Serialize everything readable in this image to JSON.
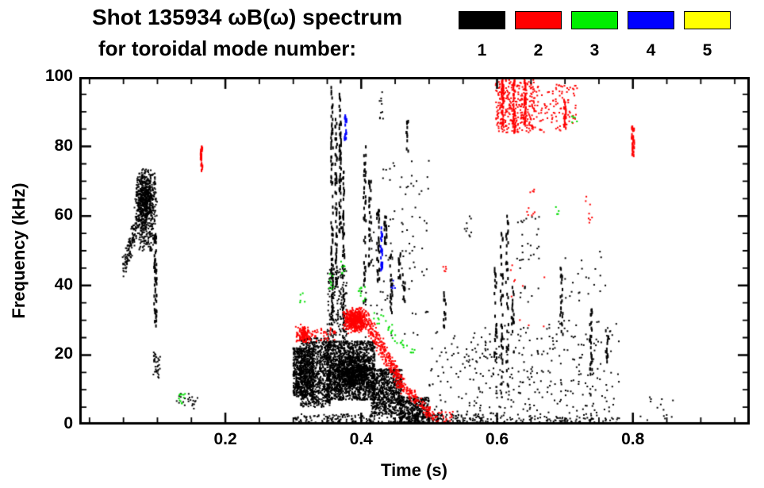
{
  "figure": {
    "title_line1": "Shot 135934 ωB(ω) spectrum",
    "title_line2": "for toroidal mode number:",
    "background": "#ffffff"
  },
  "legend": {
    "position": "top",
    "entries": [
      {
        "label": "1",
        "color": "#000000"
      },
      {
        "label": "2",
        "color": "#ff0000"
      },
      {
        "label": "3",
        "color": "#00ee00"
      },
      {
        "label": "4",
        "color": "#0000ff"
      },
      {
        "label": "5",
        "color": "#ffff00"
      }
    ]
  },
  "chart_data": {
    "type": "scatter",
    "title": "Shot 135934 ωB(ω) spectrum for toroidal mode number: 1 2 3 4 5",
    "xlabel": "Time (s)",
    "ylabel": "Frequency (kHz)",
    "xlim": [
      -0.015,
      0.972
    ],
    "ylim": [
      0,
      100
    ],
    "grid": false,
    "x_ticks": [
      {
        "value": 0.2,
        "label": "0.2"
      },
      {
        "value": 0.4,
        "label": "0.4"
      },
      {
        "value": 0.6,
        "label": "0.6"
      },
      {
        "value": 0.8,
        "label": "0.8"
      }
    ],
    "y_ticks": [
      {
        "value": 0,
        "label": "0"
      },
      {
        "value": 20,
        "label": "20"
      },
      {
        "value": 40,
        "label": "40"
      },
      {
        "value": 60,
        "label": "60"
      },
      {
        "value": 80,
        "label": "80"
      },
      {
        "value": 100,
        "label": "100"
      }
    ],
    "x_minor_step": 0.05,
    "y_minor_step": 5,
    "series": [
      {
        "name": "n=1",
        "color": "#000000",
        "clusters": [
          {
            "kind": "chirp",
            "from": [
              0.05,
              44
            ],
            "to": [
              0.072,
              60
            ],
            "jt": 0.003,
            "jf": 3,
            "n": 120,
            "s": 2
          },
          {
            "kind": "blob",
            "t": [
              0.066,
              0.1
            ],
            "f": [
              56,
              74
            ],
            "n": 650,
            "s": 2
          },
          {
            "kind": "band",
            "t": [
              0.07,
              0.095
            ],
            "f": [
              50,
              58
            ],
            "n": 120,
            "s": 2
          },
          {
            "kind": "vline",
            "t": 0.097,
            "f": [
              28,
              55
            ],
            "jt": 0.002,
            "n": 55,
            "s": 2
          },
          {
            "kind": "band",
            "t": [
              0.094,
              0.104
            ],
            "f": [
              13,
              21
            ],
            "n": 35,
            "s": 2
          },
          {
            "kind": "band",
            "t": [
              0.128,
              0.16
            ],
            "f": [
              4,
              9
            ],
            "n": 22,
            "s": 2
          },
          {
            "kind": "band",
            "t": [
              0.3,
              0.33
            ],
            "f": [
              8,
              22
            ],
            "n": 600,
            "s": 2
          },
          {
            "kind": "band",
            "t": [
              0.31,
              0.355
            ],
            "f": [
              5,
              25
            ],
            "n": 800,
            "s": 2
          },
          {
            "kind": "band",
            "t": [
              0.35,
              0.42
            ],
            "f": [
              7,
              24
            ],
            "n": 1500,
            "s": 2
          },
          {
            "kind": "blob",
            "t": [
              0.355,
              0.415
            ],
            "f": [
              10,
              20
            ],
            "n": 600,
            "s": 2
          },
          {
            "kind": "band",
            "t": [
              0.415,
              0.46
            ],
            "f": [
              3,
              16
            ],
            "n": 700,
            "s": 2
          },
          {
            "kind": "band",
            "t": [
              0.455,
              0.5
            ],
            "f": [
              0,
              8
            ],
            "n": 420,
            "s": 2
          },
          {
            "kind": "band",
            "t": [
              0.3,
              0.52
            ],
            "f": [
              0,
              3
            ],
            "n": 260,
            "s": 2
          },
          {
            "kind": "vline",
            "t": 0.357,
            "f": [
              25,
              97
            ],
            "jt": 0.0015,
            "n": 85,
            "s": 2
          },
          {
            "kind": "vline",
            "t": 0.363,
            "f": [
              40,
              90
            ],
            "jt": 0.0015,
            "n": 55,
            "s": 2
          },
          {
            "kind": "vline",
            "t": 0.369,
            "f": [
              55,
              100
            ],
            "jt": 0.0015,
            "n": 65,
            "s": 2
          },
          {
            "kind": "vline",
            "t": 0.374,
            "f": [
              25,
              75
            ],
            "jt": 0.0015,
            "n": 55,
            "s": 2
          },
          {
            "kind": "band",
            "t": [
              0.35,
              0.38
            ],
            "f": [
              24,
              45
            ],
            "n": 160,
            "s": 2
          },
          {
            "kind": "vline",
            "t": 0.405,
            "f": [
              35,
              80
            ],
            "jt": 0.002,
            "n": 45,
            "s": 2
          },
          {
            "kind": "vline",
            "t": 0.413,
            "f": [
              45,
              70
            ],
            "jt": 0.002,
            "n": 28,
            "s": 2
          },
          {
            "kind": "vline",
            "t": 0.425,
            "f": [
              40,
              62
            ],
            "jt": 0.002,
            "n": 32,
            "s": 2
          },
          {
            "kind": "vline",
            "t": 0.436,
            "f": [
              52,
              60
            ],
            "jt": 0.002,
            "n": 18,
            "s": 2
          },
          {
            "kind": "vline",
            "t": 0.444,
            "f": [
              30,
              50
            ],
            "jt": 0.002,
            "n": 22,
            "s": 2
          },
          {
            "kind": "vline",
            "t": 0.456,
            "f": [
              42,
              50
            ],
            "jt": 0.002,
            "n": 14,
            "s": 2
          },
          {
            "kind": "vline",
            "t": 0.463,
            "f": [
              35,
              45
            ],
            "jt": 0.002,
            "n": 13,
            "s": 2
          },
          {
            "kind": "band",
            "t": [
              0.4,
              0.5
            ],
            "f": [
              25,
              60
            ],
            "n": 70,
            "s": 2
          },
          {
            "kind": "band",
            "t": [
              0.43,
              0.5
            ],
            "f": [
              60,
              76
            ],
            "n": 25,
            "s": 2
          },
          {
            "kind": "vline",
            "t": 0.468,
            "f": [
              78,
              88
            ],
            "jt": 0.0015,
            "n": 12,
            "s": 2
          },
          {
            "kind": "band",
            "t": [
              0.427,
              0.433
            ],
            "f": [
              88,
              96
            ],
            "n": 10,
            "s": 2
          },
          {
            "kind": "band",
            "t": [
              0.5,
              0.58
            ],
            "f": [
              0,
              3
            ],
            "n": 90,
            "s": 2
          },
          {
            "kind": "band",
            "t": [
              0.5,
              0.58
            ],
            "f": [
              3,
              28
            ],
            "n": 85,
            "s": 2
          },
          {
            "kind": "vline",
            "t": 0.523,
            "f": [
              28,
              38
            ],
            "jt": 0.002,
            "n": 14,
            "s": 2
          },
          {
            "kind": "band",
            "t": [
              0.552,
              0.562
            ],
            "f": [
              54,
              60
            ],
            "n": 9,
            "s": 2
          },
          {
            "kind": "vline",
            "t": 0.598,
            "f": [
              18,
              45
            ],
            "jt": 0.002,
            "n": 26,
            "s": 2
          },
          {
            "kind": "vline",
            "t": 0.607,
            "f": [
              5,
              55
            ],
            "jt": 0.002,
            "n": 40,
            "s": 2
          },
          {
            "kind": "vline",
            "t": 0.615,
            "f": [
              10,
              60
            ],
            "jt": 0.002,
            "n": 36,
            "s": 2
          },
          {
            "kind": "vline",
            "t": 0.623,
            "f": [
              20,
              40
            ],
            "jt": 0.002,
            "n": 18,
            "s": 2
          },
          {
            "kind": "band",
            "t": [
              0.58,
              0.66
            ],
            "f": [
              2,
              30
            ],
            "n": 130,
            "s": 2
          },
          {
            "kind": "band",
            "t": [
              0.628,
              0.662
            ],
            "f": [
              32,
              60
            ],
            "n": 34,
            "s": 2
          },
          {
            "kind": "band",
            "t": [
              0.66,
              0.78
            ],
            "f": [
              2,
              30
            ],
            "n": 150,
            "s": 2
          },
          {
            "kind": "vline",
            "t": 0.695,
            "f": [
              25,
              45
            ],
            "jt": 0.002,
            "n": 22,
            "s": 2
          },
          {
            "kind": "vline",
            "t": 0.738,
            "f": [
              8,
              35
            ],
            "jt": 0.002,
            "n": 30,
            "s": 2
          },
          {
            "kind": "band",
            "t": [
              0.7,
              0.76
            ],
            "f": [
              35,
              50
            ],
            "n": 22,
            "s": 2
          },
          {
            "kind": "vline",
            "t": 0.762,
            "f": [
              18,
              28
            ],
            "jt": 0.002,
            "n": 13,
            "s": 2
          },
          {
            "kind": "band",
            "t": [
              0.56,
              0.78
            ],
            "f": [
              0,
              2
            ],
            "n": 120,
            "s": 2
          },
          {
            "kind": "band",
            "t": [
              0.81,
              0.86
            ],
            "f": [
              1,
              8
            ],
            "n": 14,
            "s": 2
          }
        ]
      },
      {
        "name": "n=2",
        "color": "#ff0000",
        "clusters": [
          {
            "kind": "vline",
            "t": 0.165,
            "f": [
              73,
              80
            ],
            "jt": 0.0015,
            "n": 24,
            "s": 2
          },
          {
            "kind": "blob",
            "t": [
              0.303,
              0.326
            ],
            "f": [
              23,
              29
            ],
            "n": 130,
            "s": 2
          },
          {
            "kind": "band",
            "t": [
              0.326,
              0.362
            ],
            "f": [
              24,
              28
            ],
            "n": 45,
            "s": 2
          },
          {
            "kind": "blob",
            "t": [
              0.372,
              0.412
            ],
            "f": [
              26,
              34
            ],
            "n": 480,
            "s": 2
          },
          {
            "kind": "chirp",
            "from": [
              0.41,
              29
            ],
            "to": [
              0.462,
              11
            ],
            "jt": 0.004,
            "jf": 2.5,
            "n": 260,
            "s": 2
          },
          {
            "kind": "chirp",
            "from": [
              0.462,
              11
            ],
            "to": [
              0.502,
              3
            ],
            "jt": 0.004,
            "jf": 1.5,
            "n": 110,
            "s": 2
          },
          {
            "kind": "band",
            "t": [
              0.5,
              0.535
            ],
            "f": [
              0,
              4
            ],
            "n": 40,
            "s": 2
          },
          {
            "kind": "band",
            "t": [
              0.598,
              0.655
            ],
            "f": [
              84,
              100
            ],
            "n": 330,
            "s": 2
          },
          {
            "kind": "vline",
            "t": 0.608,
            "f": [
              86,
              100
            ],
            "jt": 0.0015,
            "n": 35,
            "s": 2
          },
          {
            "kind": "vline",
            "t": 0.625,
            "f": [
              84,
              100
            ],
            "jt": 0.0015,
            "n": 35,
            "s": 2
          },
          {
            "kind": "vline",
            "t": 0.641,
            "f": [
              86,
              100
            ],
            "jt": 0.0015,
            "n": 30,
            "s": 2
          },
          {
            "kind": "band",
            "t": [
              0.655,
              0.72
            ],
            "f": [
              84,
              98
            ],
            "n": 110,
            "s": 2
          },
          {
            "kind": "vline",
            "t": 0.7,
            "f": [
              85,
              94
            ],
            "jt": 0.0015,
            "n": 22,
            "s": 2
          },
          {
            "kind": "band",
            "t": [
              0.644,
              0.656
            ],
            "f": [
              60,
              68
            ],
            "n": 10,
            "s": 2
          },
          {
            "kind": "band",
            "t": [
              0.62,
              0.67
            ],
            "f": [
              28,
              46
            ],
            "n": 10,
            "s": 2
          },
          {
            "kind": "band",
            "t": [
              0.725,
              0.74
            ],
            "f": [
              58,
              66
            ],
            "n": 8,
            "s": 2
          },
          {
            "kind": "vline",
            "t": 0.8,
            "f": [
              77,
              86
            ],
            "jt": 0.002,
            "n": 28,
            "s": 2
          },
          {
            "kind": "band",
            "t": [
              0.515,
              0.525
            ],
            "f": [
              43,
              47
            ],
            "n": 5,
            "s": 2
          }
        ]
      },
      {
        "name": "n=3",
        "color": "#00dd00",
        "clusters": [
          {
            "kind": "band",
            "t": [
              0.131,
              0.141
            ],
            "f": [
              6,
              9
            ],
            "n": 12,
            "s": 2
          },
          {
            "kind": "band",
            "t": [
              0.31,
              0.32
            ],
            "f": [
              35,
              38
            ],
            "n": 5,
            "s": 2
          },
          {
            "kind": "band",
            "t": [
              0.352,
              0.36
            ],
            "f": [
              39,
              44
            ],
            "n": 9,
            "s": 2
          },
          {
            "kind": "band",
            "t": [
              0.369,
              0.376
            ],
            "f": [
              43,
              47
            ],
            "n": 7,
            "s": 2
          },
          {
            "kind": "band",
            "t": [
              0.396,
              0.406
            ],
            "f": [
              35,
              40
            ],
            "n": 11,
            "s": 2
          },
          {
            "kind": "chirp",
            "from": [
              0.415,
              33
            ],
            "to": [
              0.468,
              22
            ],
            "jt": 0.004,
            "jf": 1.5,
            "n": 28,
            "s": 2
          },
          {
            "kind": "band",
            "t": [
              0.472,
              0.48
            ],
            "f": [
              19,
              22
            ],
            "n": 5,
            "s": 2
          },
          {
            "kind": "band",
            "t": [
              0.71,
              0.718
            ],
            "f": [
              85,
              90
            ],
            "n": 5,
            "s": 2
          },
          {
            "kind": "band",
            "t": [
              0.686,
              0.694
            ],
            "f": [
              60,
              64
            ],
            "n": 4,
            "s": 2
          }
        ]
      },
      {
        "name": "n=4",
        "color": "#0000ff",
        "clusters": [
          {
            "kind": "vline",
            "t": 0.377,
            "f": [
              82,
              89
            ],
            "jt": 0.0015,
            "n": 18,
            "s": 2
          },
          {
            "kind": "vline",
            "t": 0.43,
            "f": [
              44,
              57
            ],
            "jt": 0.0015,
            "n": 26,
            "s": 2
          },
          {
            "kind": "band",
            "t": [
              0.444,
              0.45
            ],
            "f": [
              39,
              42
            ],
            "n": 5,
            "s": 2
          }
        ]
      },
      {
        "name": "n=5",
        "color": "#ffff00",
        "clusters": []
      }
    ]
  }
}
